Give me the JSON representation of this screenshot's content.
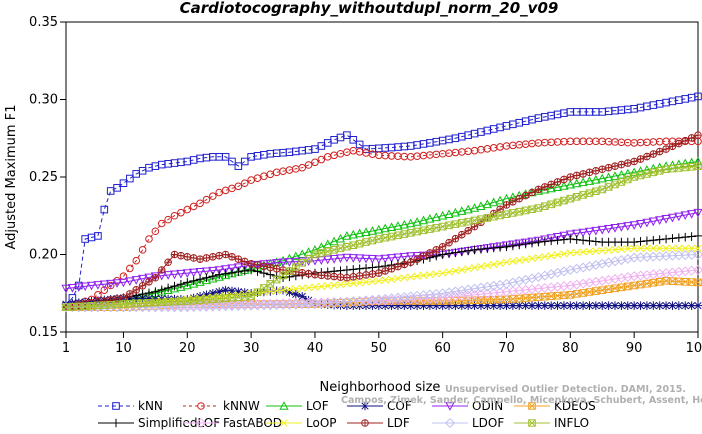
{
  "chart_data": {
    "type": "line",
    "title": "Cardiotocography_withoutdupl_norm_20_v09",
    "xlabel": "Neighborhood size",
    "ylabel": "Adjusted Maximum F1",
    "xlim": [
      1,
      100
    ],
    "ylim": [
      0.15,
      0.35
    ],
    "xticks": [
      "1",
      "10",
      "20",
      "30",
      "40",
      "50",
      "60",
      "70",
      "80",
      "90",
      "100"
    ],
    "yticks": [
      "0.15",
      "0.20",
      "0.25",
      "0.30",
      "0.35"
    ],
    "grid": false,
    "legend_position": "bottom",
    "watermark": [
      "Unsupervised Outlier Detection. DAMI, 2015.",
      "Campos, Zimek, Sander, Campello, Micenkova, Schubert, Assent, Houle"
    ],
    "series": [
      {
        "name": "kNN",
        "color": "#2020d0",
        "marker": "square",
        "dash": "4,3",
        "points": [
          [
            1,
            0.167
          ],
          [
            2,
            0.172
          ],
          [
            3,
            0.18
          ],
          [
            4,
            0.21
          ],
          [
            5,
            0.211
          ],
          [
            6,
            0.212
          ],
          [
            7,
            0.229
          ],
          [
            8,
            0.241
          ],
          [
            9,
            0.243
          ],
          [
            10,
            0.246
          ],
          [
            12,
            0.252
          ],
          [
            14,
            0.256
          ],
          [
            16,
            0.258
          ],
          [
            18,
            0.259
          ],
          [
            20,
            0.26
          ],
          [
            22,
            0.262
          ],
          [
            24,
            0.263
          ],
          [
            26,
            0.263
          ],
          [
            28,
            0.257
          ],
          [
            30,
            0.263
          ],
          [
            33,
            0.265
          ],
          [
            36,
            0.266
          ],
          [
            40,
            0.268
          ],
          [
            43,
            0.274
          ],
          [
            45,
            0.277
          ],
          [
            48,
            0.268
          ],
          [
            52,
            0.269
          ],
          [
            55,
            0.27
          ],
          [
            58,
            0.272
          ],
          [
            62,
            0.275
          ],
          [
            65,
            0.278
          ],
          [
            70,
            0.283
          ],
          [
            75,
            0.288
          ],
          [
            80,
            0.292
          ],
          [
            85,
            0.292
          ],
          [
            90,
            0.294
          ],
          [
            95,
            0.298
          ],
          [
            100,
            0.302
          ]
        ]
      },
      {
        "name": "kNNW",
        "color": "#d02020",
        "marker": "circle",
        "dash": "3,3",
        "points": [
          [
            1,
            0.166
          ],
          [
            5,
            0.171
          ],
          [
            8,
            0.18
          ],
          [
            10,
            0.186
          ],
          [
            12,
            0.196
          ],
          [
            14,
            0.21
          ],
          [
            16,
            0.22
          ],
          [
            18,
            0.225
          ],
          [
            20,
            0.229
          ],
          [
            22,
            0.233
          ],
          [
            25,
            0.24
          ],
          [
            28,
            0.244
          ],
          [
            30,
            0.248
          ],
          [
            34,
            0.253
          ],
          [
            38,
            0.256
          ],
          [
            42,
            0.263
          ],
          [
            46,
            0.267
          ],
          [
            50,
            0.264
          ],
          [
            55,
            0.263
          ],
          [
            60,
            0.265
          ],
          [
            65,
            0.267
          ],
          [
            70,
            0.27
          ],
          [
            75,
            0.272
          ],
          [
            80,
            0.273
          ],
          [
            85,
            0.273
          ],
          [
            90,
            0.272
          ],
          [
            95,
            0.273
          ],
          [
            100,
            0.273
          ]
        ]
      },
      {
        "name": "LOF",
        "color": "#10c010",
        "marker": "triangle-up",
        "dash": "",
        "points": [
          [
            1,
            0.166
          ],
          [
            10,
            0.17
          ],
          [
            20,
            0.18
          ],
          [
            30,
            0.191
          ],
          [
            35,
            0.196
          ],
          [
            40,
            0.203
          ],
          [
            45,
            0.212
          ],
          [
            50,
            0.216
          ],
          [
            55,
            0.22
          ],
          [
            60,
            0.225
          ],
          [
            65,
            0.23
          ],
          [
            70,
            0.236
          ],
          [
            75,
            0.241
          ],
          [
            80,
            0.245
          ],
          [
            85,
            0.249
          ],
          [
            90,
            0.253
          ],
          [
            95,
            0.257
          ],
          [
            100,
            0.26
          ]
        ]
      },
      {
        "name": "COF",
        "color": "#101080",
        "marker": "star",
        "dash": "",
        "points": [
          [
            1,
            0.168
          ],
          [
            10,
            0.172
          ],
          [
            20,
            0.171
          ],
          [
            26,
            0.177
          ],
          [
            30,
            0.175
          ],
          [
            35,
            0.177
          ],
          [
            38,
            0.173
          ],
          [
            40,
            0.168
          ],
          [
            45,
            0.167
          ],
          [
            50,
            0.167
          ],
          [
            60,
            0.167
          ],
          [
            70,
            0.167
          ],
          [
            80,
            0.167
          ],
          [
            90,
            0.167
          ],
          [
            100,
            0.167
          ]
        ]
      },
      {
        "name": "ODIN",
        "color": "#9020f0",
        "marker": "triangle-down",
        "dash": "",
        "points": [
          [
            1,
            0.178
          ],
          [
            5,
            0.18
          ],
          [
            10,
            0.182
          ],
          [
            15,
            0.186
          ],
          [
            20,
            0.188
          ],
          [
            25,
            0.19
          ],
          [
            30,
            0.193
          ],
          [
            35,
            0.195
          ],
          [
            40,
            0.196
          ],
          [
            45,
            0.198
          ],
          [
            50,
            0.197
          ],
          [
            55,
            0.199
          ],
          [
            60,
            0.2
          ],
          [
            65,
            0.203
          ],
          [
            70,
            0.206
          ],
          [
            75,
            0.209
          ],
          [
            80,
            0.213
          ],
          [
            85,
            0.216
          ],
          [
            90,
            0.219
          ],
          [
            95,
            0.223
          ],
          [
            100,
            0.227
          ]
        ]
      },
      {
        "name": "KDEOS",
        "color": "#f0a020",
        "marker": "boxx",
        "dash": "",
        "points": [
          [
            1,
            0.166
          ],
          [
            10,
            0.166
          ],
          [
            20,
            0.168
          ],
          [
            30,
            0.168
          ],
          [
            40,
            0.168
          ],
          [
            50,
            0.17
          ],
          [
            60,
            0.17
          ],
          [
            70,
            0.171
          ],
          [
            80,
            0.174
          ],
          [
            90,
            0.18
          ],
          [
            95,
            0.183
          ],
          [
            100,
            0.182
          ]
        ]
      },
      {
        "name": "SimplifiedLOF",
        "color": "#000000",
        "marker": "plus",
        "dash": "",
        "points": [
          [
            1,
            0.166
          ],
          [
            5,
            0.168
          ],
          [
            10,
            0.172
          ],
          [
            15,
            0.176
          ],
          [
            20,
            0.182
          ],
          [
            25,
            0.187
          ],
          [
            30,
            0.19
          ],
          [
            35,
            0.185
          ],
          [
            40,
            0.188
          ],
          [
            45,
            0.19
          ],
          [
            50,
            0.192
          ],
          [
            55,
            0.195
          ],
          [
            60,
            0.2
          ],
          [
            65,
            0.203
          ],
          [
            70,
            0.205
          ],
          [
            75,
            0.208
          ],
          [
            80,
            0.21
          ],
          [
            85,
            0.208
          ],
          [
            90,
            0.208
          ],
          [
            95,
            0.21
          ],
          [
            100,
            0.212
          ]
        ]
      },
      {
        "name": "FastABOD",
        "color": "#f0b0f0",
        "marker": "diamond",
        "dash": "",
        "points": [
          [
            1,
            0.166
          ],
          [
            10,
            0.166
          ],
          [
            20,
            0.167
          ],
          [
            30,
            0.168
          ],
          [
            40,
            0.169
          ],
          [
            50,
            0.17
          ],
          [
            60,
            0.172
          ],
          [
            70,
            0.176
          ],
          [
            80,
            0.18
          ],
          [
            90,
            0.186
          ],
          [
            100,
            0.19
          ]
        ]
      },
      {
        "name": "LoOP",
        "color": "#f0f020",
        "marker": "x",
        "dash": "",
        "points": [
          [
            1,
            0.166
          ],
          [
            10,
            0.168
          ],
          [
            20,
            0.171
          ],
          [
            30,
            0.175
          ],
          [
            40,
            0.179
          ],
          [
            50,
            0.183
          ],
          [
            60,
            0.188
          ],
          [
            70,
            0.195
          ],
          [
            80,
            0.201
          ],
          [
            90,
            0.204
          ],
          [
            100,
            0.204
          ]
        ]
      },
      {
        "name": "LDF",
        "color": "#a02020",
        "marker": "circle-plus",
        "dash": "",
        "points": [
          [
            1,
            0.166
          ],
          [
            10,
            0.172
          ],
          [
            15,
            0.185
          ],
          [
            18,
            0.2
          ],
          [
            22,
            0.197
          ],
          [
            26,
            0.2
          ],
          [
            30,
            0.194
          ],
          [
            35,
            0.19
          ],
          [
            40,
            0.187
          ],
          [
            45,
            0.185
          ],
          [
            50,
            0.188
          ],
          [
            55,
            0.195
          ],
          [
            60,
            0.205
          ],
          [
            65,
            0.218
          ],
          [
            70,
            0.232
          ],
          [
            75,
            0.242
          ],
          [
            80,
            0.25
          ],
          [
            85,
            0.255
          ],
          [
            90,
            0.26
          ],
          [
            95,
            0.268
          ],
          [
            100,
            0.277
          ]
        ]
      },
      {
        "name": "LDOF",
        "color": "#c0c0f0",
        "marker": "diamond",
        "dash": "",
        "points": [
          [
            1,
            0.166
          ],
          [
            10,
            0.166
          ],
          [
            20,
            0.166
          ],
          [
            30,
            0.167
          ],
          [
            40,
            0.168
          ],
          [
            50,
            0.171
          ],
          [
            60,
            0.175
          ],
          [
            70,
            0.181
          ],
          [
            80,
            0.19
          ],
          [
            90,
            0.198
          ],
          [
            100,
            0.2
          ]
        ]
      },
      {
        "name": "INFLO",
        "color": "#a0c030",
        "marker": "boxx",
        "dash": "",
        "points": [
          [
            1,
            0.166
          ],
          [
            10,
            0.168
          ],
          [
            20,
            0.17
          ],
          [
            30,
            0.173
          ],
          [
            40,
            0.2
          ],
          [
            45,
            0.205
          ],
          [
            50,
            0.21
          ],
          [
            55,
            0.214
          ],
          [
            60,
            0.218
          ],
          [
            65,
            0.222
          ],
          [
            70,
            0.226
          ],
          [
            75,
            0.23
          ],
          [
            80,
            0.236
          ],
          [
            85,
            0.242
          ],
          [
            90,
            0.25
          ],
          [
            95,
            0.255
          ],
          [
            100,
            0.257
          ]
        ]
      }
    ]
  }
}
